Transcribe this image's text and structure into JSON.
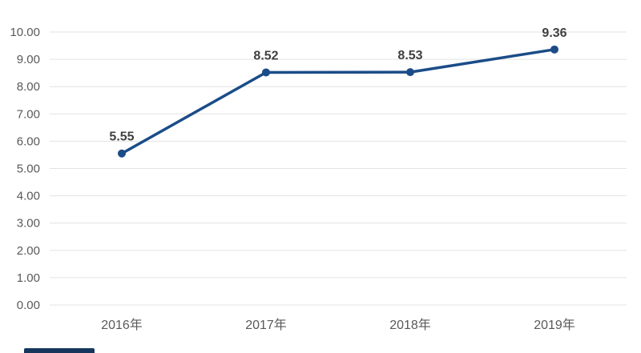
{
  "chart_data": {
    "type": "line",
    "title": "",
    "xlabel": "",
    "ylabel": "",
    "legend": "none",
    "grid": "horizontal",
    "categories": [
      "2016年",
      "2017年",
      "2018年",
      "2019年"
    ],
    "values": [
      5.55,
      8.52,
      8.53,
      9.36
    ],
    "point_labels": [
      "5.55",
      "8.52",
      "8.53",
      "9.36"
    ],
    "series": [
      {
        "name": "value",
        "values": [
          5.55,
          8.52,
          8.53,
          9.36
        ]
      }
    ],
    "ylim": [
      0,
      10
    ],
    "y_tick_values": [
      0,
      1,
      2,
      3,
      4,
      5,
      6,
      7,
      8,
      9,
      10
    ],
    "y_ticks": [
      "0.00",
      "1.00",
      "2.00",
      "3.00",
      "4.00",
      "5.00",
      "6.00",
      "7.00",
      "8.00",
      "9.00",
      "10.00"
    ],
    "colors": {
      "line": "#1b4c88",
      "marker": "#1b4c88",
      "grid": "#e3e3e3",
      "tick_text": "#595959",
      "label_text": "#3f3f3f",
      "background": "#ffffff"
    }
  }
}
